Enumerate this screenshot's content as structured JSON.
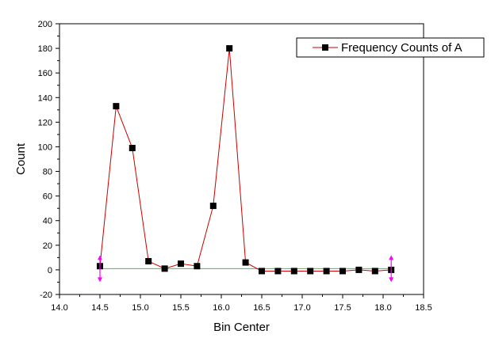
{
  "chart_data": {
    "type": "line",
    "xlabel": "Bin Center",
    "ylabel": "Count",
    "xlim": [
      14.0,
      18.5
    ],
    "ylim": [
      -20,
      200
    ],
    "x_ticks": [
      "14.0",
      "14.5",
      "15.0",
      "15.5",
      "16.0",
      "16.5",
      "17.0",
      "17.5",
      "18.0",
      "18.5"
    ],
    "y_ticks": [
      "-20",
      "0",
      "20",
      "40",
      "60",
      "80",
      "100",
      "120",
      "140",
      "160",
      "180",
      "200"
    ],
    "legend_position": "top-right",
    "grid": false,
    "series": [
      {
        "name": "Frequency Counts of A",
        "line_color": "#cc0000",
        "marker_color": "#000000",
        "marker": "square",
        "x": [
          14.5,
          14.7,
          14.9,
          15.1,
          15.3,
          15.5,
          15.7,
          15.9,
          16.1,
          16.3,
          16.5,
          16.7,
          16.9,
          17.1,
          17.3,
          17.5,
          17.7,
          17.9,
          18.1
        ],
        "y": [
          3,
          133,
          99,
          7,
          1,
          5,
          3,
          52,
          180,
          6,
          -1,
          -1,
          -1,
          -1,
          -1,
          -1,
          0,
          -1,
          0
        ]
      }
    ],
    "baseline": {
      "color": "#33cc33",
      "x": [
        14.5,
        18.1
      ],
      "y": [
        1,
        1
      ]
    },
    "range_markers": {
      "color": "#ff00ff",
      "x": [
        14.5,
        18.1
      ]
    }
  }
}
